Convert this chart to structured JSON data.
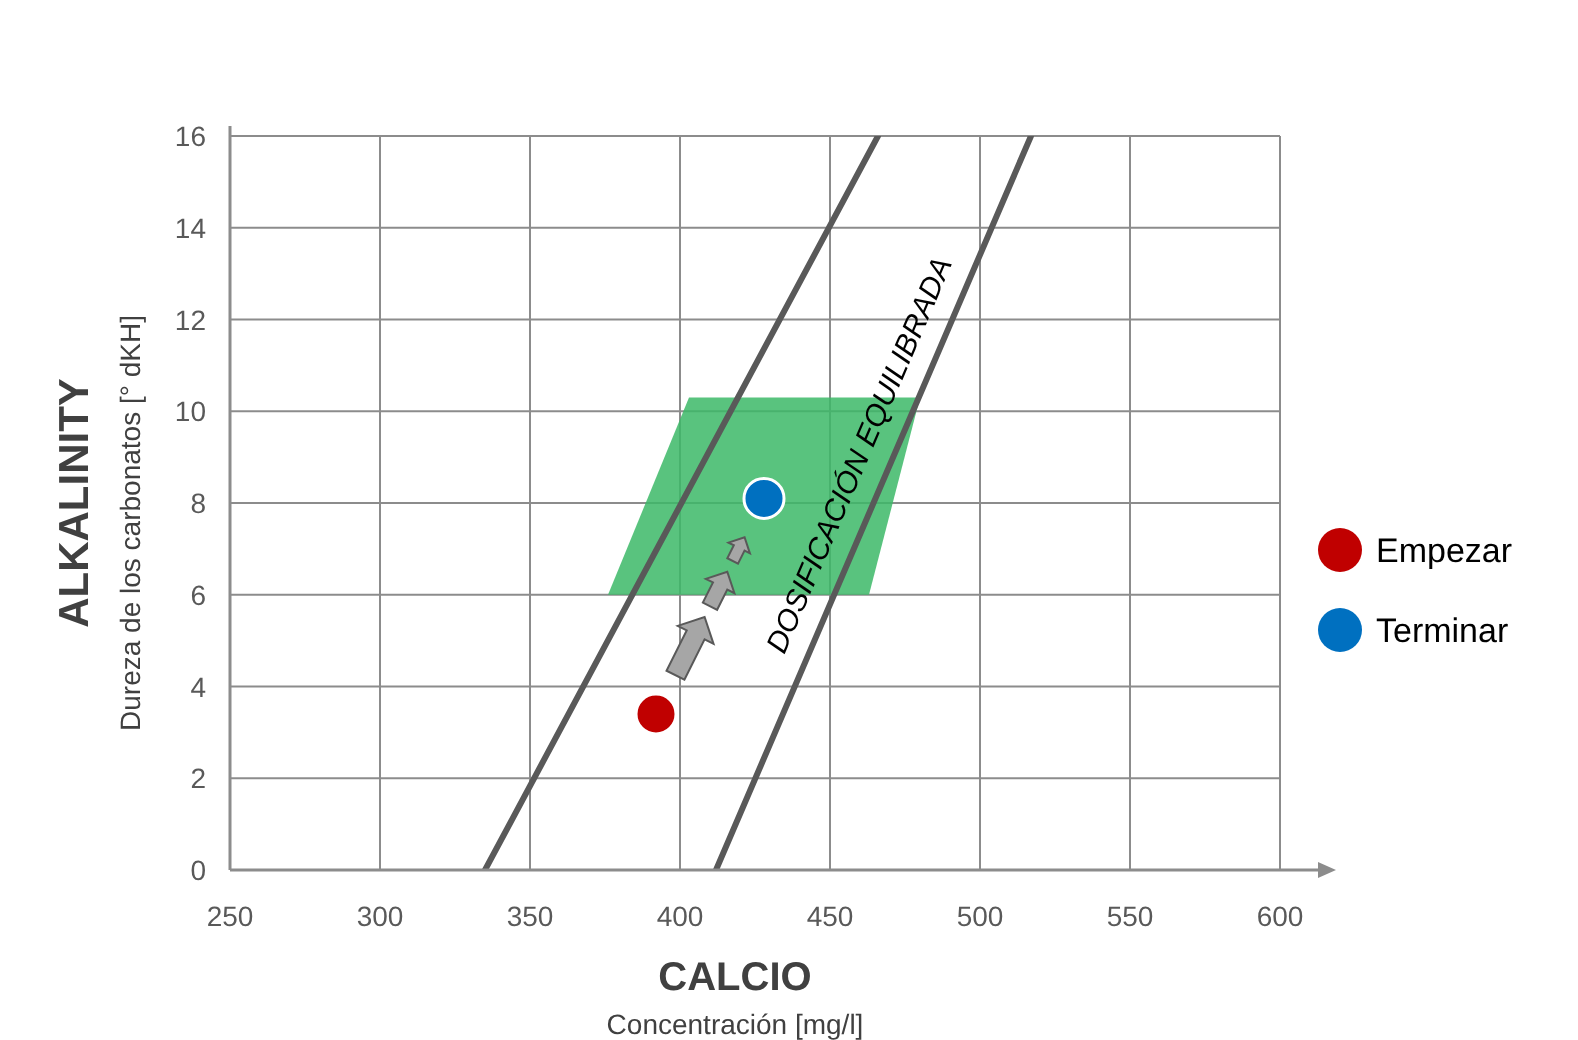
{
  "chart_data": {
    "type": "scatter",
    "xlabel": "CALCIO",
    "ylabel": "ALKALINITY",
    "annotations": [
      "Concentración  [mg/l]",
      "Dureza de los carbonatos [° dKH]",
      "DOSIFICACIÓN EQUILIBRADA"
    ],
    "xlim": [
      250,
      600
    ],
    "xticks": [
      250,
      300,
      350,
      400,
      450,
      500,
      550,
      600
    ],
    "ylim": [
      0,
      16
    ],
    "yticks": [
      0,
      2,
      4,
      6,
      8,
      10,
      12,
      14,
      16
    ],
    "grid": true,
    "legend": "right",
    "series": [
      {
        "type": "area",
        "color": "#3cb867",
        "x": [
          376,
          403,
          463,
          480
        ],
        "values": [
          null,
          null,
          null,
          null
        ],
        "lower": [
          6,
          6,
          6,
          10.3
        ],
        "upper": [
          6,
          10.3,
          10.3,
          10.3
        ]
      },
      {
        "type": "line",
        "color": "#595959",
        "x": [
          335,
          466
        ],
        "values": [
          0,
          16
        ]
      },
      {
        "type": "line",
        "color": "#595959",
        "x": [
          412,
          517
        ],
        "values": [
          0,
          16
        ]
      },
      {
        "name": "Empezar",
        "color": "#c00000",
        "marker": "circle",
        "x": [
          392
        ],
        "values": [
          3.4
        ]
      },
      {
        "name": "Terminar",
        "color": "#0070c0",
        "marker": "circle",
        "x": [
          428
        ],
        "values": [
          8.1
        ]
      }
    ]
  }
}
